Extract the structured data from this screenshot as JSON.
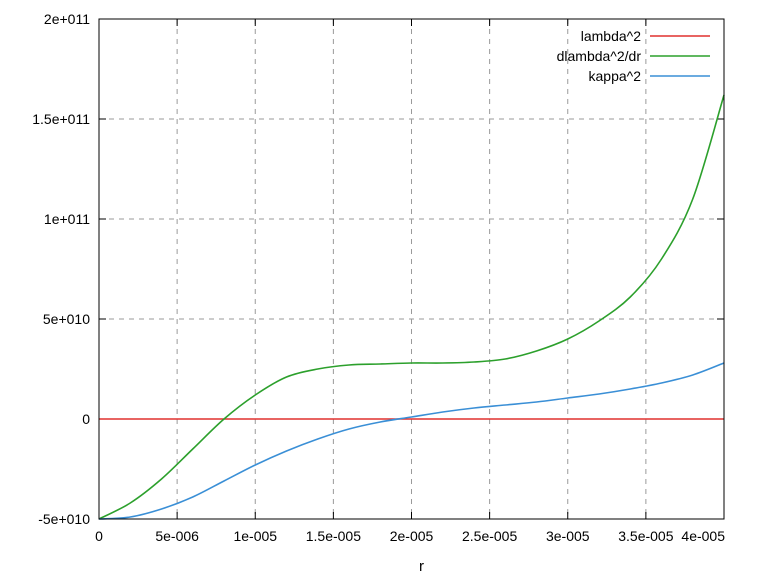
{
  "chart_data": {
    "type": "line",
    "title": "",
    "xlabel": "r",
    "ylabel": "",
    "xlim": [
      0,
      4e-05
    ],
    "ylim": [
      -50000000000,
      200000000000
    ],
    "grid": true,
    "legend_position": "top-right",
    "x_ticks": [
      {
        "value": 0,
        "label": "0"
      },
      {
        "value": 5e-06,
        "label": "5e-006"
      },
      {
        "value": 1e-05,
        "label": "1e-005"
      },
      {
        "value": 1.5e-05,
        "label": "1.5e-005"
      },
      {
        "value": 2e-05,
        "label": "2e-005"
      },
      {
        "value": 2.5e-05,
        "label": "2.5e-005"
      },
      {
        "value": 3e-05,
        "label": "3e-005"
      },
      {
        "value": 3.5e-05,
        "label": "3.5e-005"
      },
      {
        "value": 4e-05,
        "label": "4e-005"
      }
    ],
    "y_ticks": [
      {
        "value": -50000000000,
        "label": "-5e+010"
      },
      {
        "value": 0,
        "label": "0"
      },
      {
        "value": 50000000000,
        "label": "5e+010"
      },
      {
        "value": 100000000000,
        "label": "1e+011"
      },
      {
        "value": 150000000000,
        "label": "1.5e+011"
      },
      {
        "value": 200000000000,
        "label": "2e+011"
      }
    ],
    "series": [
      {
        "name": "lambda^2",
        "color": "#e0302f",
        "x": [
          0,
          4e-05
        ],
        "y": [
          0,
          0
        ]
      },
      {
        "name": "dlambda^2/dr",
        "color": "#2ca02c",
        "x": [
          0,
          2e-06,
          4e-06,
          6e-06,
          8e-06,
          1e-05,
          1.2e-05,
          1.4e-05,
          1.6e-05,
          1.8e-05,
          2e-05,
          2.2e-05,
          2.4e-05,
          2.6e-05,
          2.8e-05,
          3e-05,
          3.2e-05,
          3.4e-05,
          3.6e-05,
          3.8e-05,
          4e-05
        ],
        "y": [
          -50000000000,
          -42000000000,
          -30000000000,
          -15000000000,
          0,
          12000000000,
          21000000000,
          25000000000,
          27000000000,
          27500000000,
          28000000000,
          28000000000,
          28500000000,
          30000000000,
          34000000000,
          40000000000,
          49000000000,
          61000000000,
          80000000000,
          110000000000,
          162000000000
        ]
      },
      {
        "name": "kappa^2",
        "color": "#3a8fd6",
        "x": [
          0,
          2e-06,
          4e-06,
          6e-06,
          8e-06,
          1e-05,
          1.2e-05,
          1.4e-05,
          1.6e-05,
          1.8e-05,
          2e-05,
          2.2e-05,
          2.4e-05,
          2.6e-05,
          2.8e-05,
          3e-05,
          3.2e-05,
          3.4e-05,
          3.6e-05,
          3.8e-05,
          4e-05
        ],
        "y": [
          -50000000000,
          -49000000000,
          -45000000000,
          -39000000000,
          -31000000000,
          -23000000000,
          -16000000000,
          -10000000000,
          -5000000000,
          -1500000000,
          1000000000,
          3500000000,
          5500000000,
          7000000000,
          8500000000,
          10500000000,
          12500000000,
          15000000000,
          18000000000,
          22000000000,
          28000000000
        ]
      }
    ]
  }
}
